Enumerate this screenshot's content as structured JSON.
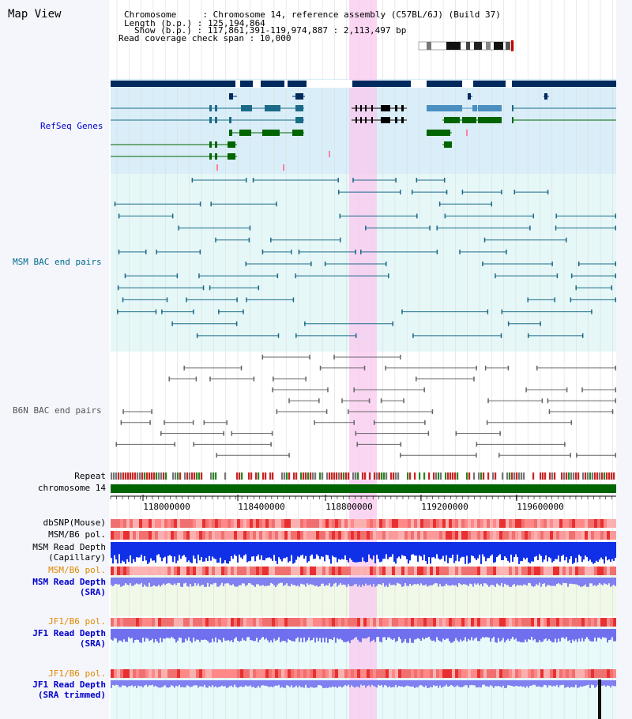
{
  "page": {
    "title": "Map View",
    "header_lines": [
      "Chromosome     : Chromosome 14, reference assembly (C57BL/6J) (Build 37)",
      "Length (b.p.) : 125,194,864",
      "Show (b.p.) : 117,861,391-119,974,887 : 2,113,497 bp",
      "Read coverage check span : 10,000"
    ]
  },
  "tracks": {
    "refseq": "RefSeq Genes",
    "msm_bac": "MSM BAC end pairs",
    "b6n_bac": "B6N BAC end pairs",
    "repeat": "Repeat",
    "chromosome": "chromosome 14",
    "dbsnp": "dbSNP(Mouse)",
    "msm_b6_pol_1": "MSM/B6 pol.",
    "msm_depth_cap_1": "MSM Read Depth",
    "msm_depth_cap_2": "(Capillary)",
    "msm_b6_pol_2": "MSM/B6 pol.",
    "msm_depth_sra_1": "MSM Read Depth",
    "msm_depth_sra_2": "(SRA)",
    "jf1_b6_pol_1": "JF1/B6 pol.",
    "jf1_depth_sra_1": "JF1 Read Depth",
    "jf1_depth_sra_2": "(SRA)",
    "jf1_b6_pol_2": "JF1/B6 pol.",
    "jf1_depth_trim_1": "JF1 Read Depth",
    "jf1_depth_trim_2": "(SRA trimmed)"
  },
  "axis": {
    "ticks": [
      "118000000",
      "118400000",
      "118800000",
      "119200000",
      "119600000"
    ]
  },
  "colors": {
    "gene_dark": "#002a5e",
    "gene_mid": "#4a8fc0",
    "gene_green": "#006400",
    "refseq_bg": "#d9eef8",
    "msm_bg": "#e6f7f7",
    "msm_line": "#1b6b88",
    "b6n_line": "#666666",
    "highlight": "#f9c8ef",
    "chrom_bar": "#006400",
    "label_blue": "#0000cc",
    "label_teal": "#006b8a",
    "label_orange": "#e08800"
  }
}
